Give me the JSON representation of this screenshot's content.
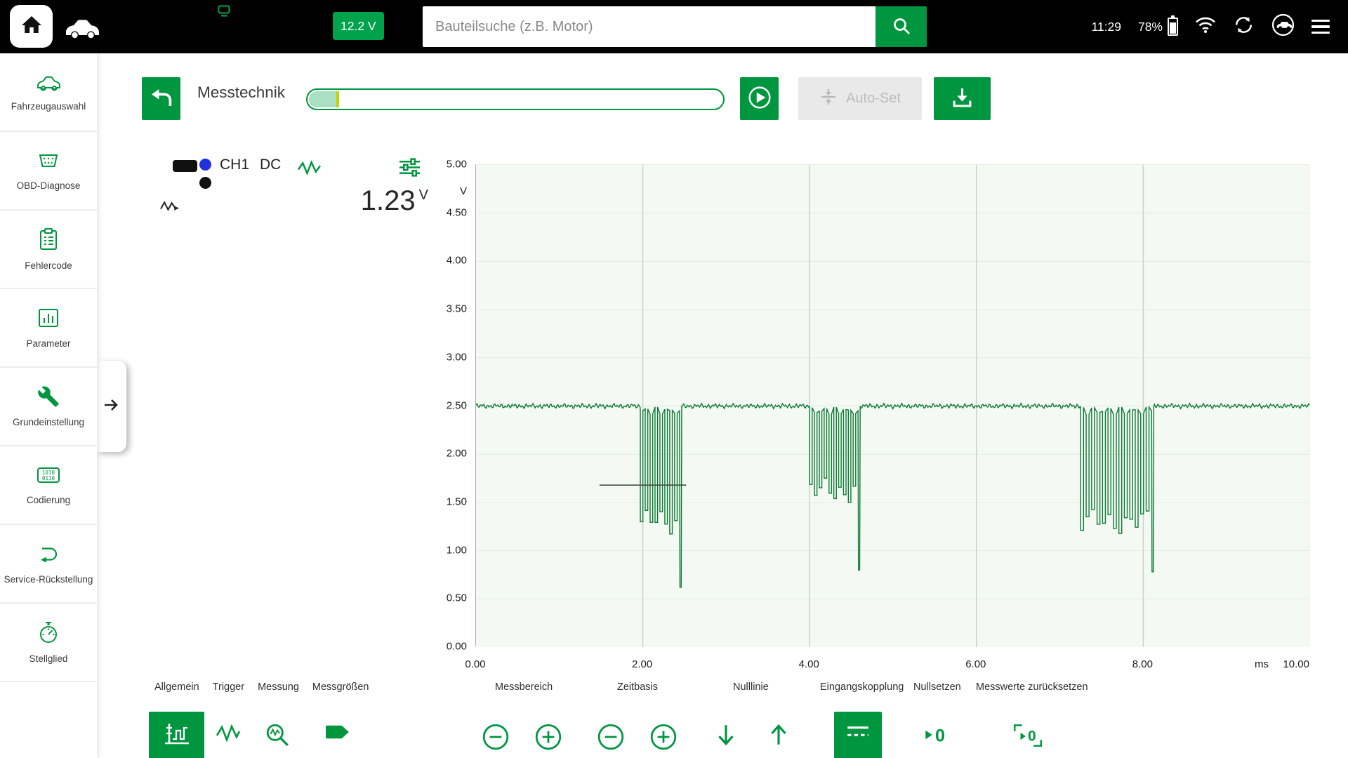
{
  "topbar": {
    "voltage_badge": "12.2 V",
    "search_placeholder": "Bauteilsuche (z.B. Motor)",
    "clock": "11:29",
    "battery_percent": "78%"
  },
  "sidebar": {
    "items": [
      {
        "label": "Fahrzeugauswahl"
      },
      {
        "label": "OBD-Diagnose"
      },
      {
        "label": "Fehlercode"
      },
      {
        "label": "Parameter"
      },
      {
        "label": "Grundeinstellung"
      },
      {
        "label": "Codierung"
      },
      {
        "label": "Service-Rückstellung"
      },
      {
        "label": "Stellglied"
      }
    ]
  },
  "header": {
    "title": "Messtechnik",
    "progress_percent": 7,
    "autoset_label": "Auto-Set"
  },
  "scope": {
    "channel": "CH1",
    "coupling": "DC",
    "value": "1.23",
    "unit": "V"
  },
  "tabs": [
    "Allgemein",
    "Trigger",
    "Messung",
    "Messgrößen"
  ],
  "controls": {
    "messbereich": "Messbereich",
    "zeitbasis": "Zeitbasis",
    "nulllinie": "Nulllinie",
    "eingangskopplung": "Eingangskopplung",
    "nullsetzen": "Nullsetzen",
    "messwerte": "Messwerte zurücksetzen"
  },
  "colors": {
    "accent_green": "#00953f",
    "badge_green": "#00a24c",
    "waveform_green": "#0a7a31",
    "disabled_gray": "#e9e9e9",
    "channel_blue": "#2330dd"
  },
  "chart_data": {
    "type": "line",
    "xlabel": "ms",
    "ylabel": "V",
    "x_unit": "ms",
    "y_unit": "V",
    "xlim": [
      0,
      10
    ],
    "ylim": [
      0,
      5
    ],
    "grid": true,
    "x_ticks": [
      "0.00",
      "2.00",
      "4.00",
      "6.00",
      "8.00",
      "10.00"
    ],
    "x_tick_values": [
      0,
      2,
      4,
      6,
      8,
      10
    ],
    "y_ticks": [
      "5.00",
      "4.50",
      "4.00",
      "3.50",
      "3.00",
      "2.50",
      "2.00",
      "1.50",
      "1.00",
      "0.50",
      "0.00"
    ],
    "baseline_v": 2.5,
    "burst_high_v": 2.45,
    "bursts": [
      {
        "start_ms": 1.97,
        "end_ms": 2.44,
        "pulses": 8,
        "low_v": 1.3,
        "tail_dip_v": 0.62
      },
      {
        "start_ms": 4.0,
        "end_ms": 4.58,
        "pulses": 10,
        "low_v": 1.62,
        "tail_dip_v": 0.8
      },
      {
        "start_ms": 7.25,
        "end_ms": 8.1,
        "pulses": 13,
        "low_v": 1.3,
        "tail_dip_v": 0.78
      }
    ],
    "trigger_line": {
      "level_v": 1.68,
      "x_start_ms": 1.48,
      "x_end_ms": 2.52
    },
    "measured_value_v": 1.23
  }
}
